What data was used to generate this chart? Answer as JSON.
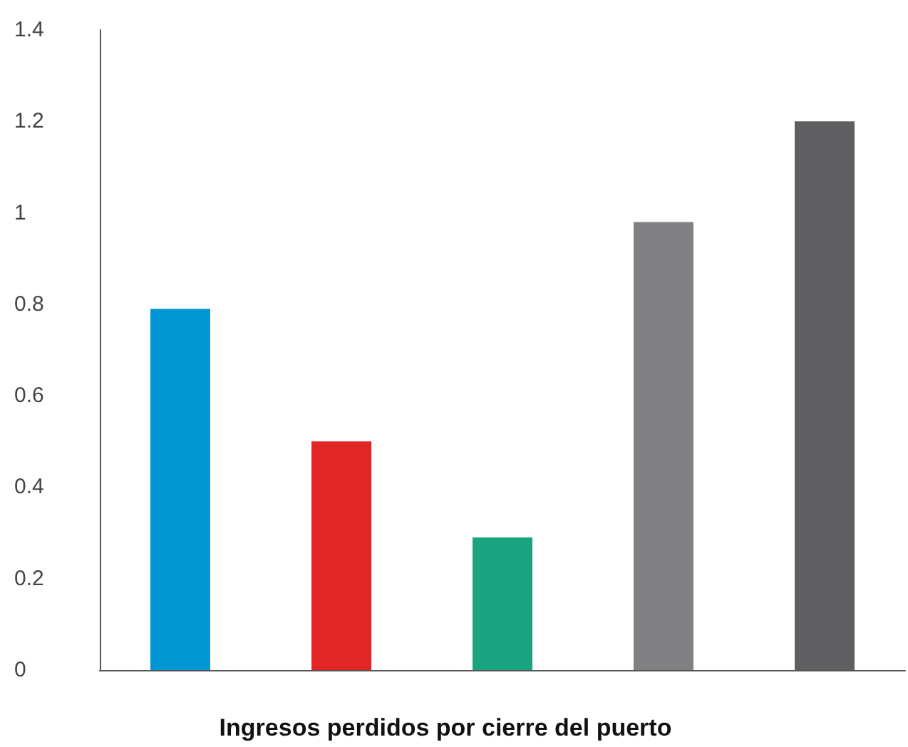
{
  "chart_data": {
    "type": "bar",
    "xlabel": "Ingresos perdidos por cierre del puerto",
    "categories": [
      null,
      null,
      null,
      null,
      null
    ],
    "values": [
      0.79,
      0.5,
      0.29,
      0.98,
      1.2
    ],
    "colors": [
      "#0096d6",
      "#e02726",
      "#1aa37f",
      "#808083",
      "#5f5e60"
    ],
    "ylim": [
      0,
      1.4
    ],
    "yticks": [
      0,
      0.2,
      0.4,
      0.6,
      0.8,
      1,
      1.2,
      1.4
    ],
    "grid": false
  }
}
